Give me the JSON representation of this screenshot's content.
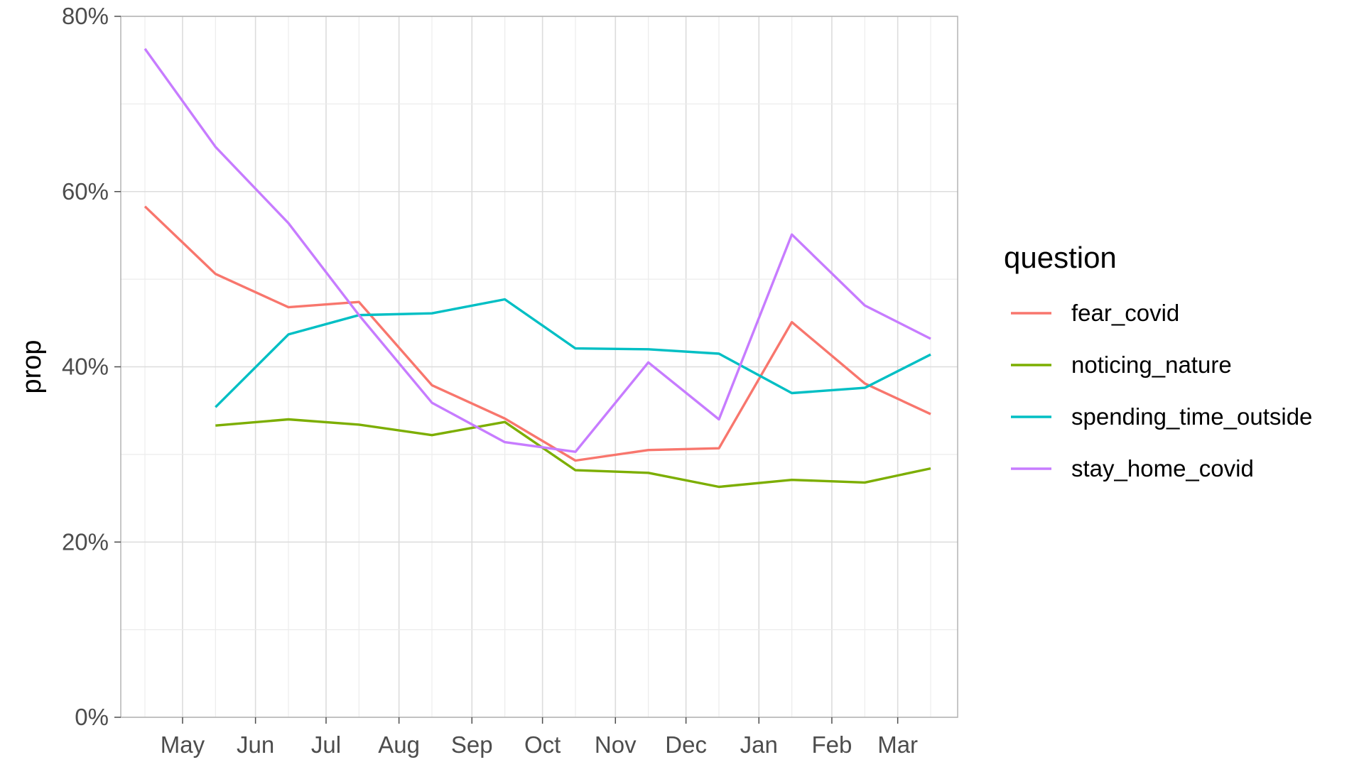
{
  "chart_data": {
    "type": "line",
    "title": "",
    "xlabel": "",
    "ylabel": "prop",
    "x_ticks": [
      "May",
      "Jun",
      "Jul",
      "Aug",
      "Sep",
      "Oct",
      "Nov",
      "Dec",
      "Jan",
      "Feb",
      "Mar"
    ],
    "y_ticks": [
      "0%",
      "20%",
      "40%",
      "60%",
      "80%"
    ],
    "ylim": [
      0,
      0.8
    ],
    "y_format": "percent",
    "grid": true,
    "legend": {
      "title": "question",
      "position": "right"
    },
    "x": [
      "2020-04-15",
      "2020-05-15",
      "2020-06-15",
      "2020-07-15",
      "2020-08-15",
      "2020-09-15",
      "2020-10-15",
      "2020-11-15",
      "2020-12-15",
      "2021-01-15",
      "2021-02-15",
      "2021-03-15"
    ],
    "series": [
      {
        "name": "fear_covid",
        "color": "#F8766D",
        "values": [
          0.583,
          0.506,
          0.468,
          0.474,
          0.379,
          0.341,
          0.293,
          0.305,
          0.307,
          0.451,
          0.381,
          0.346
        ]
      },
      {
        "name": "noticing_nature",
        "color": "#7CAE00",
        "values": [
          null,
          0.333,
          0.34,
          0.334,
          0.322,
          0.337,
          0.282,
          0.279,
          0.263,
          0.271,
          0.268,
          0.284
        ]
      },
      {
        "name": "spending_time_outside",
        "color": "#00BFC4",
        "values": [
          null,
          0.354,
          0.437,
          0.459,
          0.461,
          0.477,
          0.421,
          0.42,
          0.415,
          0.37,
          0.376,
          0.414
        ]
      },
      {
        "name": "stay_home_covid",
        "color": "#C77CFF",
        "values": [
          0.763,
          0.651,
          0.564,
          0.459,
          0.359,
          0.314,
          0.303,
          0.405,
          0.34,
          0.551,
          0.47,
          0.432
        ]
      }
    ]
  }
}
